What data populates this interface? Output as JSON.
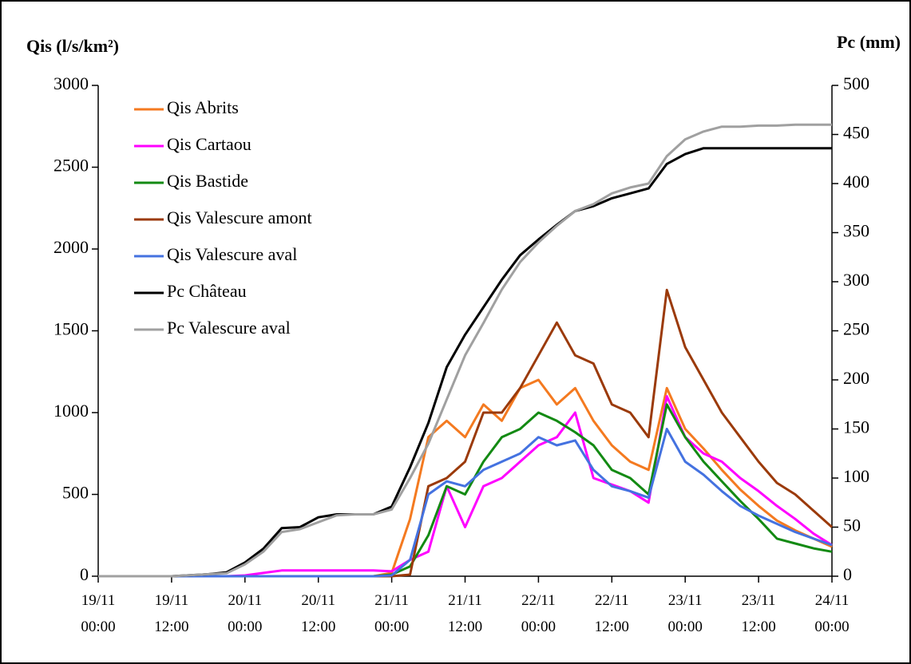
{
  "chart_data": {
    "type": "line",
    "y_label": "Qis (l/s/km²)",
    "y2_label": "Pc (mm)",
    "x": [
      "19/11 00:00",
      "19/11 03:00",
      "19/11 06:00",
      "19/11 09:00",
      "19/11 12:00",
      "19/11 15:00",
      "19/11 18:00",
      "19/11 21:00",
      "20/11 00:00",
      "20/11 03:00",
      "20/11 06:00",
      "20/11 09:00",
      "20/11 12:00",
      "20/11 15:00",
      "20/11 18:00",
      "20/11 21:00",
      "21/11 00:00",
      "21/11 03:00",
      "21/11 06:00",
      "21/11 09:00",
      "21/11 12:00",
      "21/11 15:00",
      "21/11 18:00",
      "21/11 21:00",
      "22/11 00:00",
      "22/11 03:00",
      "22/11 06:00",
      "22/11 09:00",
      "22/11 12:00",
      "22/11 15:00",
      "22/11 18:00",
      "22/11 21:00",
      "23/11 00:00",
      "23/11 03:00",
      "23/11 06:00",
      "23/11 09:00",
      "23/11 12:00",
      "23/11 15:00",
      "23/11 18:00",
      "23/11 21:00",
      "24/11 00:00"
    ],
    "xlim": [
      "19/11 00:00",
      "24/11 00:00"
    ],
    "xticks": [
      {
        "value": "19/11 00:00",
        "label": "19/11\n00:00"
      },
      {
        "value": "19/11 12:00",
        "label": "19/11\n12:00"
      },
      {
        "value": "20/11 00:00",
        "label": "20/11\n00:00"
      },
      {
        "value": "20/11 12:00",
        "label": "20/11\n12:00"
      },
      {
        "value": "21/11 00:00",
        "label": "21/11\n00:00"
      },
      {
        "value": "21/11 12:00",
        "label": "21/11\n12:00"
      },
      {
        "value": "22/11 00:00",
        "label": "22/11\n00:00"
      },
      {
        "value": "22/11 12:00",
        "label": "22/11\n12:00"
      },
      {
        "value": "23/11 00:00",
        "label": "23/11\n00:00"
      },
      {
        "value": "23/11 12:00",
        "label": "23/11\n12:00"
      },
      {
        "value": "24/11 00:00",
        "label": "24/11\n00:00"
      }
    ],
    "ylim": [
      0,
      3000
    ],
    "yticks": [
      0,
      500,
      1000,
      1500,
      2000,
      2500,
      3000
    ],
    "y2lim": [
      0,
      500
    ],
    "y2ticks": [
      0,
      50,
      100,
      150,
      200,
      250,
      300,
      350,
      400,
      450,
      500
    ],
    "grid": false,
    "legend": "upper left",
    "series": [
      {
        "name": "Qis Abrits",
        "color": "#f47a20",
        "values": [
          0,
          0,
          0,
          0,
          0,
          0,
          0,
          0,
          0,
          0,
          0,
          0,
          0,
          0,
          0,
          0,
          20,
          350,
          850,
          950,
          850,
          1050,
          950,
          1150,
          1200,
          1050,
          1150,
          950,
          800,
          700,
          650,
          1150,
          900,
          780,
          650,
          530,
          430,
          340,
          280,
          230,
          180
        ]
      },
      {
        "name": "Qis Cartaou",
        "color": "#ff00ff",
        "values": [
          0,
          0,
          0,
          0,
          0,
          0,
          0,
          0,
          5,
          20,
          35,
          35,
          35,
          35,
          35,
          35,
          30,
          100,
          150,
          550,
          300,
          550,
          600,
          700,
          800,
          850,
          1000,
          600,
          560,
          520,
          450,
          1100,
          850,
          750,
          700,
          600,
          520,
          430,
          350,
          260,
          190
        ]
      },
      {
        "name": "Qis Bastide",
        "color": "#138a13",
        "values": [
          0,
          0,
          0,
          0,
          0,
          0,
          0,
          0,
          0,
          0,
          0,
          0,
          0,
          0,
          0,
          0,
          10,
          60,
          250,
          550,
          500,
          700,
          850,
          900,
          1000,
          950,
          880,
          800,
          650,
          600,
          500,
          1050,
          850,
          700,
          580,
          460,
          350,
          230,
          200,
          170,
          150
        ]
      },
      {
        "name": "Qis Valescure amont",
        "color": "#9b3a0a",
        "values": [
          0,
          0,
          0,
          0,
          0,
          0,
          0,
          0,
          0,
          0,
          0,
          0,
          0,
          0,
          0,
          0,
          0,
          10,
          550,
          600,
          700,
          1000,
          1000,
          1150,
          1350,
          1550,
          1350,
          1300,
          1050,
          1000,
          850,
          1750,
          1400,
          1200,
          1000,
          850,
          700,
          570,
          500,
          400,
          300
        ]
      },
      {
        "name": "Qis Valescure aval",
        "color": "#4472e0",
        "values": [
          0,
          0,
          0,
          0,
          0,
          0,
          0,
          0,
          0,
          0,
          0,
          0,
          0,
          0,
          0,
          0,
          5,
          100,
          500,
          580,
          550,
          650,
          700,
          750,
          850,
          800,
          830,
          650,
          550,
          520,
          480,
          900,
          700,
          620,
          520,
          430,
          370,
          320,
          270,
          230,
          190
        ]
      },
      {
        "name": "Pc Château",
        "color": "#000000",
        "axis": "y2",
        "values": [
          0,
          0,
          0,
          0,
          0,
          1,
          2,
          4,
          14,
          28,
          49,
          50,
          60,
          63,
          63,
          63,
          71,
          111,
          156,
          213,
          246,
          274,
          302,
          327,
          343,
          358,
          372,
          377,
          385,
          390,
          395,
          420,
          430,
          436,
          436,
          436,
          436,
          436,
          436,
          436,
          436
        ]
      },
      {
        "name": "Pc Valescure aval",
        "color": "#a0a0a0",
        "axis": "y2",
        "values": [
          0,
          0,
          0,
          0,
          0,
          1,
          2,
          3,
          12,
          25,
          45,
          48,
          55,
          62,
          63,
          63,
          68,
          100,
          135,
          180,
          225,
          258,
          292,
          320,
          340,
          357,
          372,
          379,
          390,
          396,
          400,
          428,
          445,
          453,
          458,
          458,
          459,
          459,
          460,
          460,
          460
        ]
      }
    ]
  }
}
